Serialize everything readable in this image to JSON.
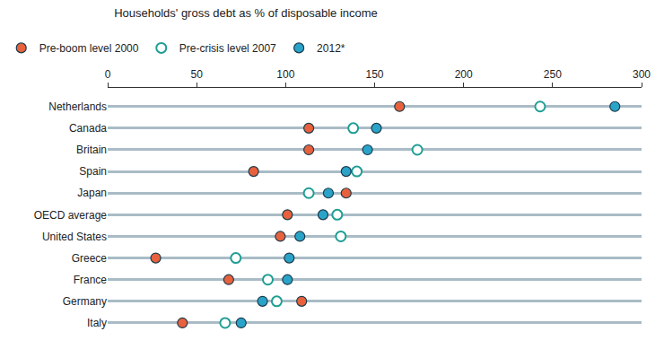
{
  "chart_data": {
    "type": "scatter",
    "orientation": "horizontal",
    "title": "Households' gross debt as % of disposable income",
    "categories": [
      "Netherlands",
      "Canada",
      "Britain",
      "Spain",
      "Japan",
      "OECD average",
      "United States",
      "Greece",
      "France",
      "Germany",
      "Italy"
    ],
    "series": [
      {
        "name": "Pre-boom level 2000",
        "color": "#e8613c",
        "marker": "circle",
        "values": [
          164,
          113,
          113,
          82,
          134,
          101,
          97,
          27,
          68,
          109,
          42
        ]
      },
      {
        "name": "Pre-crisis level 2007",
        "color": "#1f9e94",
        "marker": "circle-open",
        "values": [
          243,
          138,
          174,
          140,
          113,
          129,
          131,
          72,
          90,
          95,
          66
        ]
      },
      {
        "name": "2012*",
        "color": "#2aa3c8",
        "marker": "circle",
        "values": [
          285,
          151,
          146,
          134,
          124,
          121,
          108,
          102,
          101,
          87,
          75
        ]
      }
    ],
    "xlim": [
      0,
      300
    ],
    "xticks": [
      0,
      50,
      100,
      150,
      200,
      250,
      300
    ],
    "grid": true,
    "legend": "top-left"
  }
}
